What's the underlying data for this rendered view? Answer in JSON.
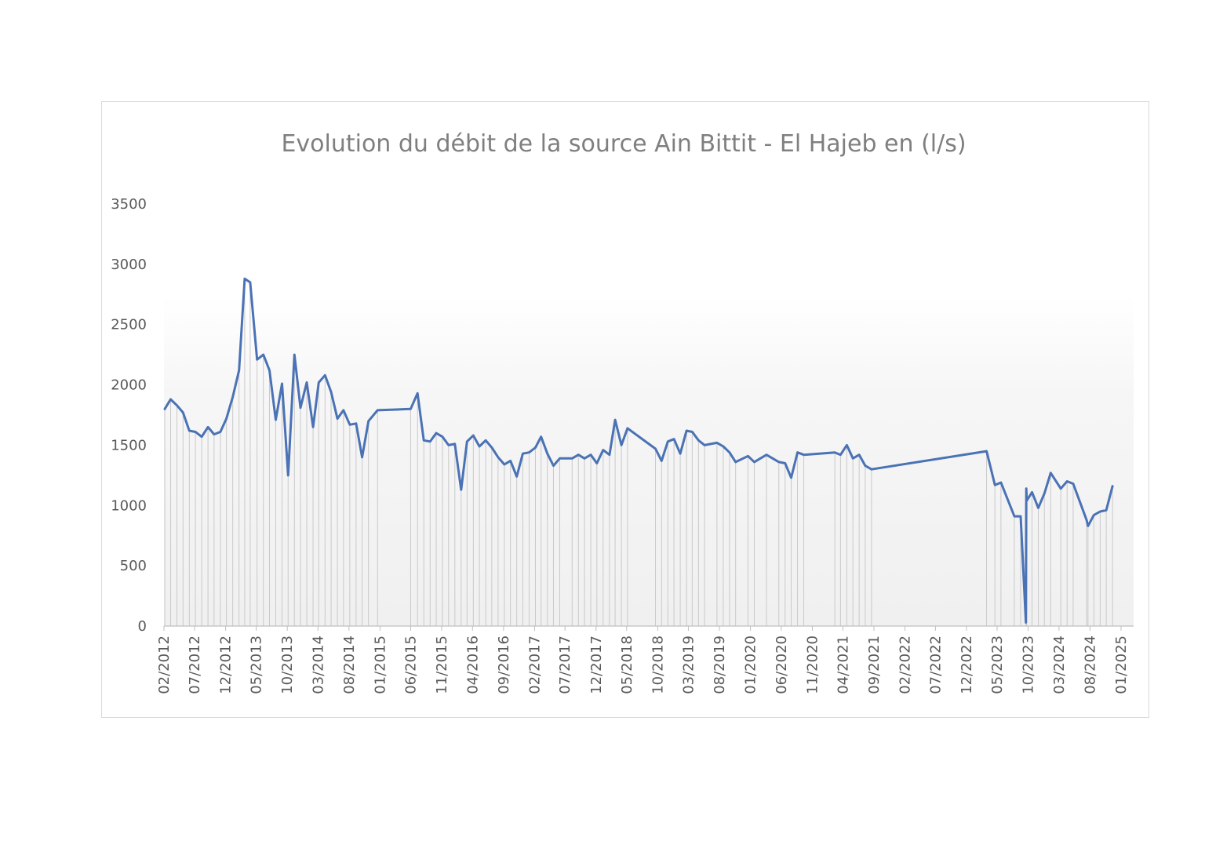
{
  "chart_data": {
    "type": "line",
    "title": "Evolution du débit de la source Ain Bittit - El Hajeb en (l/s)",
    "xlabel": "",
    "ylabel": "",
    "ylim": [
      0,
      3500
    ],
    "yticks": [
      0,
      500,
      1000,
      1500,
      2000,
      2500,
      3000,
      3500
    ],
    "x_tick_labels": [
      "02/2012",
      "07/2012",
      "12/2012",
      "05/2013",
      "10/2013",
      "03/2014",
      "08/2014",
      "01/2015",
      "06/2015",
      "11/2015",
      "04/2016",
      "09/2016",
      "02/2017",
      "07/2017",
      "12/2017",
      "05/2018",
      "10/2018",
      "03/2019",
      "08/2019",
      "01/2020",
      "06/2020",
      "11/2020",
      "04/2021",
      "09/2021",
      "02/2022",
      "07/2022",
      "12/2022",
      "05/2023",
      "10/2023",
      "03/2024",
      "08/2024",
      "01/2025"
    ],
    "grid": false,
    "legend": "none",
    "drop_lines": true,
    "series": [
      {
        "color": "#4a72b5",
        "points": [
          [
            "2012-02-05",
            1800
          ],
          [
            "2012-03-05",
            1880
          ],
          [
            "2012-04-05",
            1830
          ],
          [
            "2012-05-05",
            1770
          ],
          [
            "2012-06-05",
            1620
          ],
          [
            "2012-07-05",
            1610
          ],
          [
            "2012-08-05",
            1570
          ],
          [
            "2012-09-05",
            1650
          ],
          [
            "2012-10-05",
            1590
          ],
          [
            "2012-11-05",
            1610
          ],
          [
            "2012-12-05",
            1720
          ],
          [
            "2013-01-05",
            1900
          ],
          [
            "2013-02-05",
            2120
          ],
          [
            "2013-03-05",
            2880
          ],
          [
            "2013-04-01",
            2850
          ],
          [
            "2013-05-05",
            2210
          ],
          [
            "2013-06-05",
            2250
          ],
          [
            "2013-07-05",
            2120
          ],
          [
            "2013-08-05",
            1710
          ],
          [
            "2013-09-05",
            2010
          ],
          [
            "2013-10-05",
            1250
          ],
          [
            "2013-11-05",
            2250
          ],
          [
            "2013-12-05",
            1810
          ],
          [
            "2014-01-05",
            2020
          ],
          [
            "2014-02-05",
            1650
          ],
          [
            "2014-03-05",
            2020
          ],
          [
            "2014-04-05",
            2080
          ],
          [
            "2014-05-05",
            1940
          ],
          [
            "2014-06-05",
            1720
          ],
          [
            "2014-07-05",
            1790
          ],
          [
            "2014-08-05",
            1670
          ],
          [
            "2014-09-05",
            1680
          ],
          [
            "2014-10-05",
            1400
          ],
          [
            "2014-11-05",
            1700
          ],
          [
            "2014-12-20",
            1790
          ],
          [
            "2015-06-01",
            1800
          ],
          [
            "2015-07-05",
            1930
          ],
          [
            "2015-08-05",
            1540
          ],
          [
            "2015-09-05",
            1530
          ],
          [
            "2015-10-05",
            1600
          ],
          [
            "2015-11-05",
            1570
          ],
          [
            "2015-12-05",
            1500
          ],
          [
            "2016-01-05",
            1510
          ],
          [
            "2016-02-05",
            1130
          ],
          [
            "2016-03-05",
            1530
          ],
          [
            "2016-04-05",
            1580
          ],
          [
            "2016-05-05",
            1490
          ],
          [
            "2016-06-05",
            1540
          ],
          [
            "2016-07-05",
            1480
          ],
          [
            "2016-08-05",
            1400
          ],
          [
            "2016-09-05",
            1340
          ],
          [
            "2016-10-05",
            1370
          ],
          [
            "2016-11-05",
            1240
          ],
          [
            "2016-12-05",
            1430
          ],
          [
            "2017-01-05",
            1440
          ],
          [
            "2017-02-05",
            1480
          ],
          [
            "2017-03-05",
            1570
          ],
          [
            "2017-04-05",
            1430
          ],
          [
            "2017-05-05",
            1330
          ],
          [
            "2017-06-05",
            1390
          ],
          [
            "2017-08-05",
            1390
          ],
          [
            "2017-09-05",
            1420
          ],
          [
            "2017-10-05",
            1390
          ],
          [
            "2017-11-05",
            1420
          ],
          [
            "2017-12-05",
            1350
          ],
          [
            "2018-01-05",
            1460
          ],
          [
            "2018-02-05",
            1420
          ],
          [
            "2018-03-05",
            1710
          ],
          [
            "2018-04-05",
            1500
          ],
          [
            "2018-05-05",
            1640
          ],
          [
            "2018-09-20",
            1470
          ],
          [
            "2018-10-20",
            1370
          ],
          [
            "2018-11-20",
            1530
          ],
          [
            "2018-12-20",
            1550
          ],
          [
            "2019-01-20",
            1430
          ],
          [
            "2019-02-20",
            1620
          ],
          [
            "2019-03-20",
            1610
          ],
          [
            "2019-04-20",
            1540
          ],
          [
            "2019-05-20",
            1500
          ],
          [
            "2019-07-20",
            1520
          ],
          [
            "2019-08-20",
            1490
          ],
          [
            "2019-09-20",
            1440
          ],
          [
            "2019-10-20",
            1360
          ],
          [
            "2019-12-20",
            1410
          ],
          [
            "2020-01-20",
            1360
          ],
          [
            "2020-03-20",
            1420
          ],
          [
            "2020-05-20",
            1360
          ],
          [
            "2020-06-20",
            1350
          ],
          [
            "2020-07-20",
            1230
          ],
          [
            "2020-08-20",
            1440
          ],
          [
            "2020-09-20",
            1420
          ],
          [
            "2021-02-20",
            1440
          ],
          [
            "2021-03-20",
            1420
          ],
          [
            "2021-04-20",
            1500
          ],
          [
            "2021-05-20",
            1390
          ],
          [
            "2021-06-20",
            1420
          ],
          [
            "2021-07-20",
            1330
          ],
          [
            "2021-08-20",
            1300
          ],
          [
            "2023-03-10",
            1450
          ],
          [
            "2023-04-20",
            1170
          ],
          [
            "2023-05-20",
            1190
          ],
          [
            "2023-07-25",
            910
          ],
          [
            "2023-08-25",
            910
          ],
          [
            "2023-09-20",
            30
          ],
          [
            "2023-09-22",
            1140
          ],
          [
            "2023-09-24",
            1040
          ],
          [
            "2023-10-20",
            1110
          ],
          [
            "2023-11-20",
            980
          ],
          [
            "2023-12-20",
            1100
          ],
          [
            "2024-01-20",
            1270
          ],
          [
            "2024-03-10",
            1140
          ],
          [
            "2024-04-10",
            1200
          ],
          [
            "2024-05-10",
            1180
          ],
          [
            "2024-07-15",
            880
          ],
          [
            "2024-07-22",
            830
          ],
          [
            "2024-08-20",
            920
          ],
          [
            "2024-09-20",
            950
          ],
          [
            "2024-10-20",
            960
          ],
          [
            "2024-11-20",
            1160
          ]
        ]
      }
    ]
  }
}
